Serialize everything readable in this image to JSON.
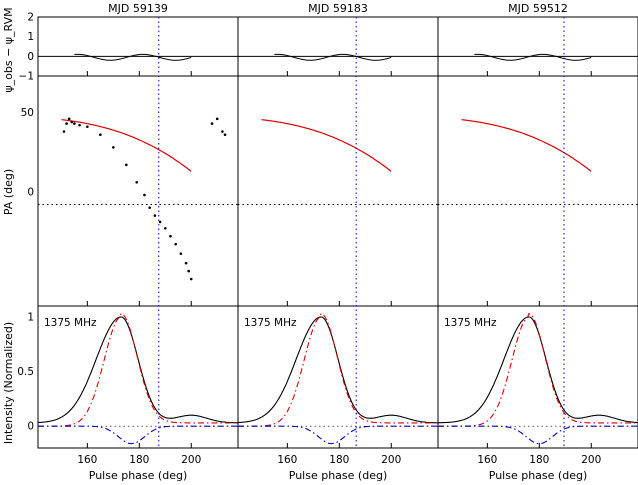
{
  "chart_data": {
    "type": "line",
    "panels": [
      {
        "title": "MJD 59139",
        "fiducial_phase": 187.5,
        "peak_phase": 173
      },
      {
        "title": "MJD 59183",
        "fiducial_phase": 186.5,
        "peak_phase": 173
      },
      {
        "title": "MJD 59512",
        "fiducial_phase": 189.5,
        "peak_phase": 176
      }
    ],
    "x_axis": {
      "label": "Pulse phase (deg)",
      "range": [
        141,
        218
      ],
      "ticks": [
        160,
        180,
        200
      ],
      "tick_labels": [
        "160",
        "180",
        "200"
      ]
    },
    "residual_axis": {
      "label": "ψ_obs − ψ_RVM",
      "range": [
        -1,
        2
      ],
      "ticks": [
        -1,
        0,
        1,
        2
      ],
      "tick_labels": [
        "−1",
        "0",
        "1",
        "2"
      ]
    },
    "pa_axis": {
      "label": "PA (deg)",
      "range": [
        -72,
        73
      ],
      "ticks": [
        0,
        50
      ],
      "tick_labels": [
        "0",
        "50"
      ],
      "reference_line": -8
    },
    "intensity_axis": {
      "label": "Intensity (Normalized)",
      "range": [
        -0.2,
        1.1
      ],
      "ticks": [
        0,
        0.5,
        1
      ],
      "tick_labels": [
        "0",
        "0.5",
        "1"
      ]
    },
    "frequency_label": "1375 MHz",
    "series": [
      {
        "kind": "total",
        "color": "#000000",
        "style": "solid"
      },
      {
        "kind": "fit-component-1",
        "color": "#dd0000",
        "style": "dash-dot"
      },
      {
        "kind": "fit-component-2",
        "color": "#0000cc",
        "style": "dash-dot"
      },
      {
        "kind": "rvm-fit",
        "color": "#dd0000",
        "style": "solid"
      }
    ],
    "pa_points_panel_1": [
      [
        151,
        38
      ],
      [
        152,
        43
      ],
      [
        153,
        46
      ],
      [
        154,
        44
      ],
      [
        155,
        43
      ],
      [
        157,
        42
      ],
      [
        160,
        41
      ],
      [
        165,
        36
      ],
      [
        170,
        28
      ],
      [
        175,
        17
      ],
      [
        179,
        6
      ],
      [
        182,
        -2
      ],
      [
        184,
        -10
      ],
      [
        186,
        -15
      ],
      [
        188,
        -19
      ],
      [
        190,
        -23
      ],
      [
        192,
        -28
      ],
      [
        194,
        -33
      ],
      [
        196,
        -39
      ],
      [
        198,
        -45
      ],
      [
        199,
        -50
      ],
      [
        200,
        -55
      ],
      [
        208,
        43
      ],
      [
        210,
        46
      ],
      [
        212,
        38
      ],
      [
        213,
        36
      ]
    ]
  }
}
